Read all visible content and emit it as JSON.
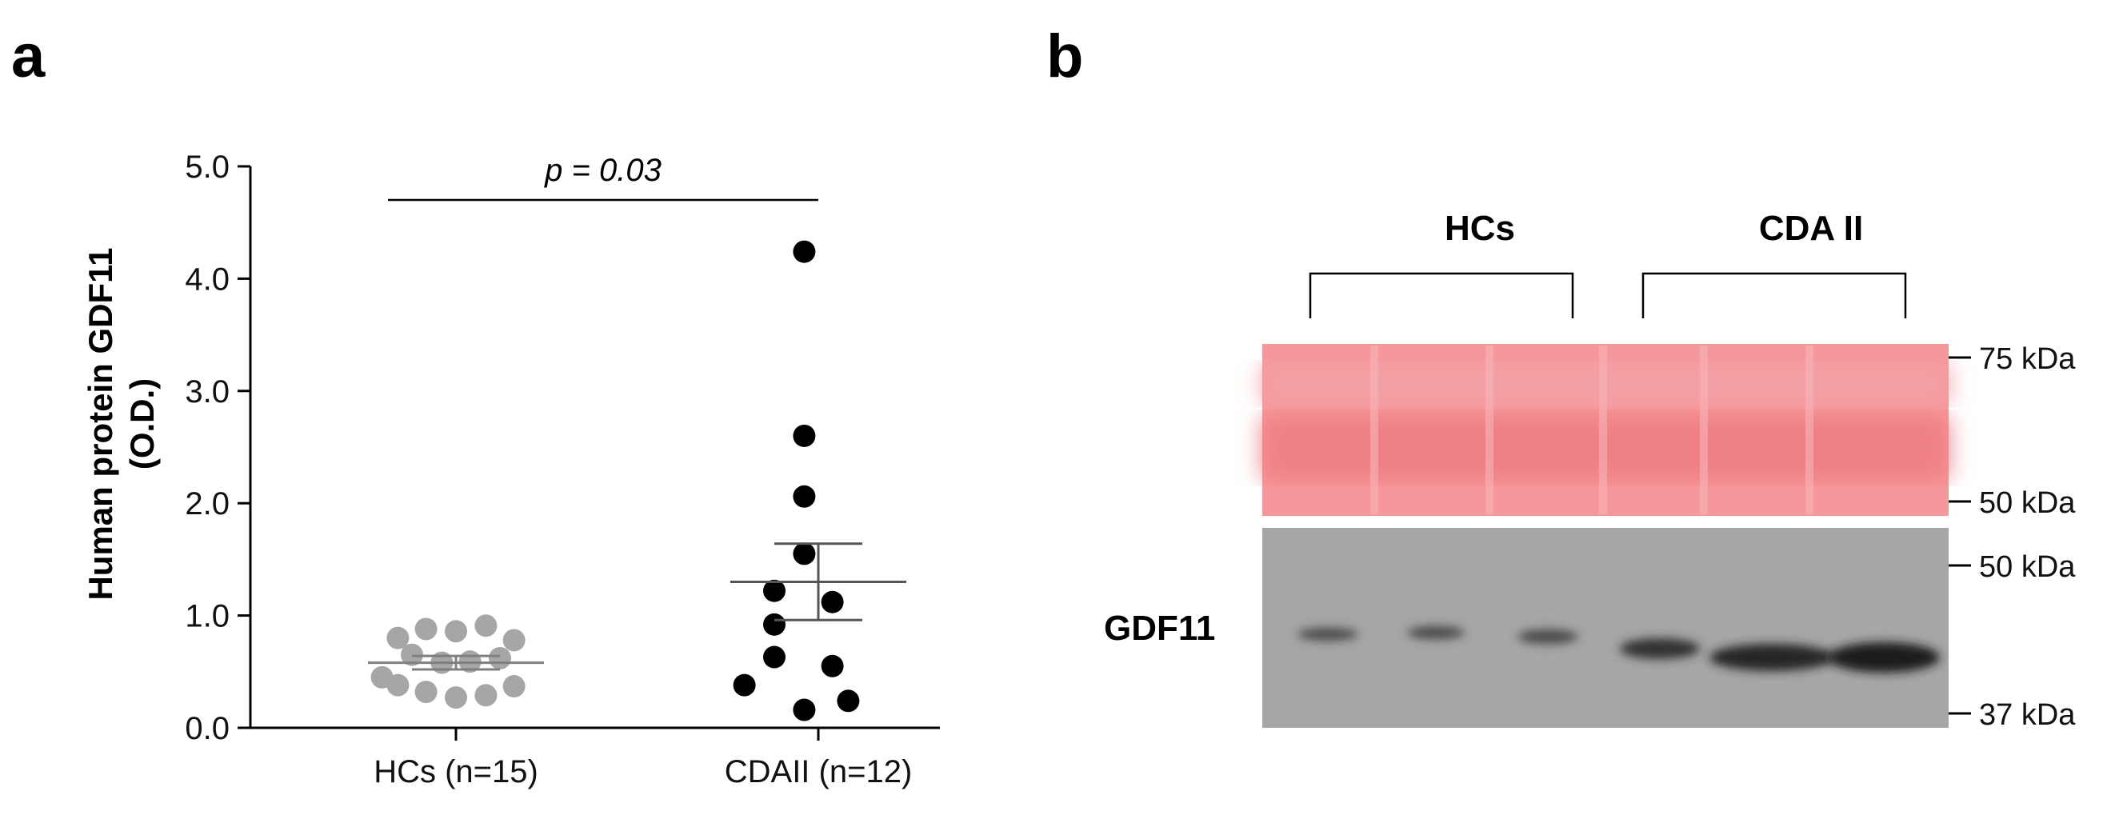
{
  "panel_a_label": "a",
  "panel_b_label": "b",
  "chart_data": {
    "type": "scatter",
    "title": "",
    "xlabel": "",
    "ylabel": "Human protein GDF11 (O.D.)",
    "ylabel_lines": [
      "Human protein GDF11",
      "(O.D.)"
    ],
    "ylim": [
      0,
      5
    ],
    "yticks": [
      "0.0",
      "1.0",
      "2.0",
      "3.0",
      "4.0",
      "5.0"
    ],
    "categories": [
      "HCs (n=15)",
      "CDAII (n=12)"
    ],
    "series": [
      {
        "category": "HCs (n=15)",
        "color": "#a6a6a6",
        "points": [
          {
            "offset": -0.33,
            "y": 0.8
          },
          {
            "offset": -0.17,
            "y": 0.88
          },
          {
            "offset": 0.0,
            "y": 0.86
          },
          {
            "offset": 0.17,
            "y": 0.91
          },
          {
            "offset": 0.33,
            "y": 0.78
          },
          {
            "offset": -0.25,
            "y": 0.65
          },
          {
            "offset": -0.08,
            "y": 0.58
          },
          {
            "offset": 0.08,
            "y": 0.59
          },
          {
            "offset": 0.25,
            "y": 0.62
          },
          {
            "offset": -0.33,
            "y": 0.38
          },
          {
            "offset": -0.17,
            "y": 0.32
          },
          {
            "offset": 0.0,
            "y": 0.27
          },
          {
            "offset": 0.17,
            "y": 0.29
          },
          {
            "offset": 0.33,
            "y": 0.37
          },
          {
            "offset": -0.42,
            "y": 0.45
          }
        ],
        "mean": 0.58,
        "sem": 0.06
      },
      {
        "category": "CDAII (n=12)",
        "color": "#000000",
        "points": [
          {
            "offset": -0.08,
            "y": 4.24
          },
          {
            "offset": -0.08,
            "y": 2.6
          },
          {
            "offset": -0.08,
            "y": 2.06
          },
          {
            "offset": -0.08,
            "y": 1.55
          },
          {
            "offset": -0.25,
            "y": 1.22
          },
          {
            "offset": 0.08,
            "y": 1.12
          },
          {
            "offset": -0.25,
            "y": 0.92
          },
          {
            "offset": -0.25,
            "y": 0.63
          },
          {
            "offset": 0.08,
            "y": 0.55
          },
          {
            "offset": -0.42,
            "y": 0.38
          },
          {
            "offset": 0.17,
            "y": 0.24
          },
          {
            "offset": -0.08,
            "y": 0.16
          }
        ],
        "mean": 1.3,
        "sem": 0.34
      }
    ],
    "annotation": "p = 0.03",
    "grid": false
  },
  "blot": {
    "groups": [
      "HCs",
      "CDA II"
    ],
    "band_label": "GDF11",
    "top_panel_markers": [
      "75 kDa",
      "50 kDa"
    ],
    "bottom_panel_markers": [
      "50 kDa",
      "37 kDa"
    ],
    "ponceau_color": "#f2878c",
    "western_color": "#a7a7a7"
  }
}
